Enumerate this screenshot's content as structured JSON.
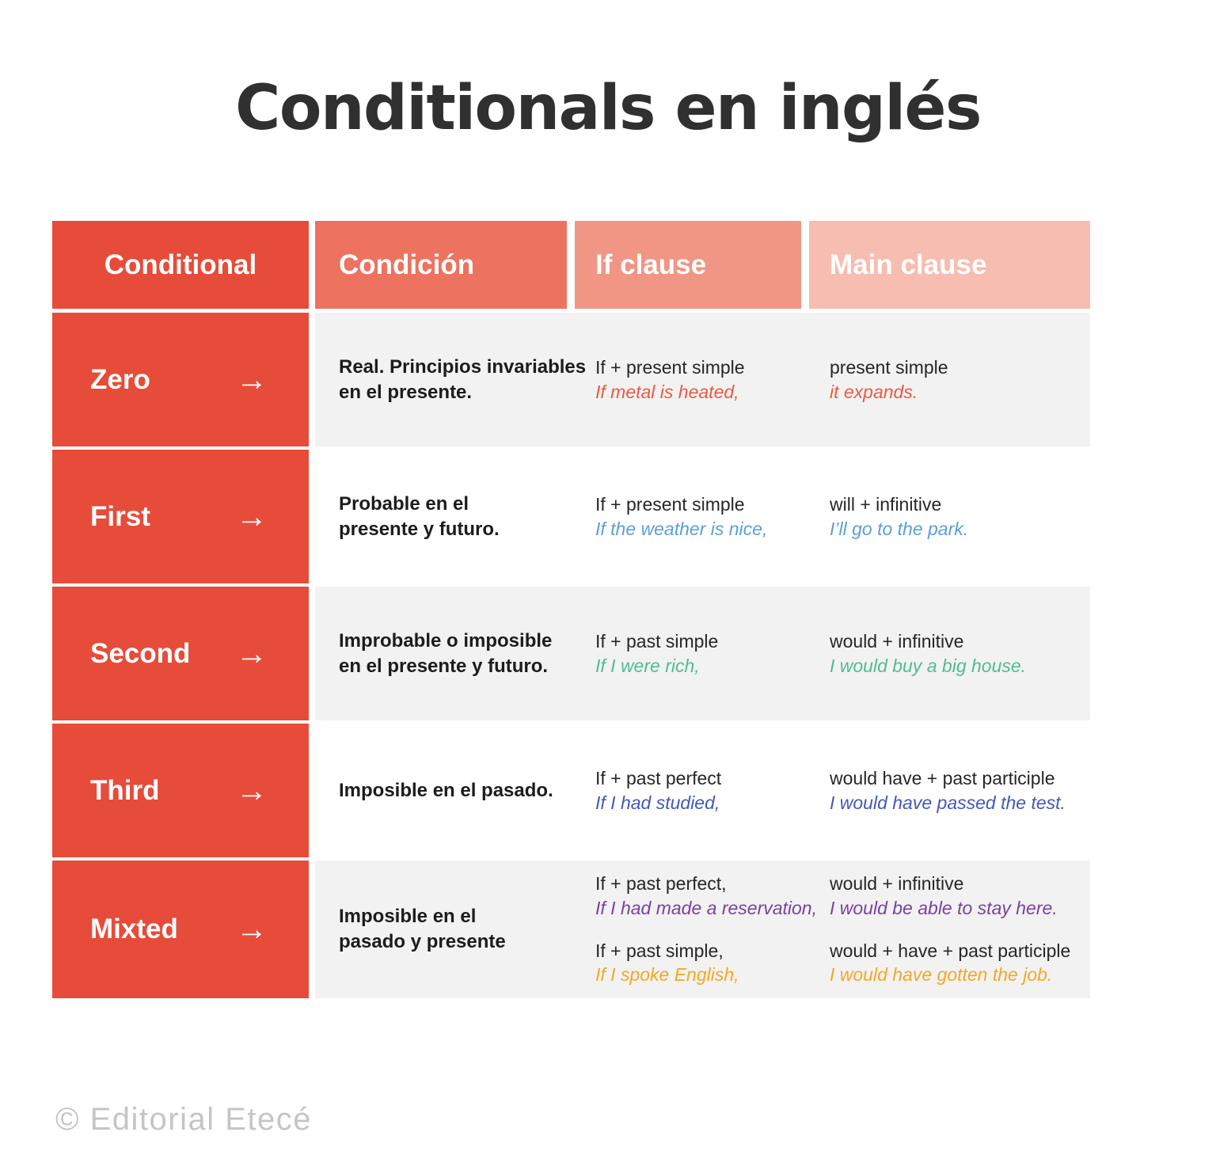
{
  "title": "Conditionals en inglés",
  "footer": "© Editorial Etecé",
  "colors": {
    "header_conditional": "#e64c39",
    "header_condicion": "#ed7360",
    "header_if_clause": "#f19584",
    "header_main_clause": "#f6bdb0",
    "row_label_bg": "#e64c39",
    "stripe_gray": "#f2f2f2",
    "title_text": "#303030",
    "body_text": "#262626",
    "footer_text": "#c5c5c5"
  },
  "table": {
    "headers": [
      {
        "label": "Conditional"
      },
      {
        "label": "Condición"
      },
      {
        "label": "If clause"
      },
      {
        "label": "Main clause"
      }
    ],
    "rows": [
      {
        "name": "Zero",
        "arrow": "→",
        "condition": "Real. Principios invariables\nen el presente.",
        "groups": [
          {
            "if_formula": "If + present simple",
            "if_example": "If metal is heated,",
            "main_formula": "present simple",
            "main_example": "it expands.",
            "example_color": "#ed5942"
          }
        ]
      },
      {
        "name": "First",
        "arrow": "→",
        "condition": "Probable en el\npresente y futuro.",
        "groups": [
          {
            "if_formula": "If + present simple",
            "if_example": "If the weather is nice,",
            "main_formula": "will + infinitive",
            "main_example": "I’ll go to the park.",
            "example_color": "#5b9fd8"
          }
        ]
      },
      {
        "name": "Second",
        "arrow": "→",
        "condition": "Improbable o imposible\nen el presente y futuro.",
        "groups": [
          {
            "if_formula": "If + past simple",
            "if_example": "If I were rich,",
            "main_formula": "would + infinitive",
            "main_example": "I would buy a big house.",
            "example_color": "#4fbd92"
          }
        ]
      },
      {
        "name": "Third",
        "arrow": "→",
        "condition": "Imposible en el pasado.",
        "groups": [
          {
            "if_formula": "If + past perfect",
            "if_example": "If I had studied,",
            "main_formula": "would have + past participle",
            "main_example": "I would have passed the test.",
            "example_color": "#4458b8"
          }
        ]
      },
      {
        "name": "Mixted",
        "arrow": "→",
        "condition": "Imposible en el\npasado y presente",
        "groups": [
          {
            "if_formula": "If + past perfect,",
            "if_example": "If I had made a reservation,",
            "main_formula": "would + infinitive",
            "main_example": "I would be able to stay here.",
            "example_color": "#7b3fa4"
          },
          {
            "if_formula": "If + past simple,",
            "if_example": "If I spoke English,",
            "main_formula": "would + have + past participle",
            "main_example": "I would have gotten the job.",
            "example_color": "#f6a723"
          }
        ]
      }
    ]
  }
}
